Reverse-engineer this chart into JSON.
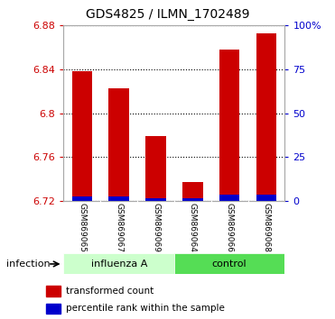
{
  "title": "GDS4825 / ILMN_1702489",
  "samples": [
    "GSM869065",
    "GSM869067",
    "GSM869069",
    "GSM869064",
    "GSM869066",
    "GSM869068"
  ],
  "red_values": [
    6.838,
    6.823,
    6.779,
    6.737,
    6.858,
    6.873
  ],
  "blue_values": [
    6.7245,
    6.7245,
    6.7225,
    6.7225,
    6.7255,
    6.7255
  ],
  "base": 6.72,
  "ylim_min": 6.72,
  "ylim_max": 6.88,
  "yticks_left": [
    6.72,
    6.76,
    6.8,
    6.84,
    6.88
  ],
  "yticks_right_labels": [
    "0",
    "25",
    "50",
    "75",
    "100%"
  ],
  "left_color": "#cc0000",
  "right_color": "#0000cc",
  "bar_red": "#cc0000",
  "bar_blue": "#0000cc",
  "bg_color": "#ffffff",
  "grid_color": "#000000",
  "label_infection": "infection",
  "legend_red": "transformed count",
  "legend_blue": "percentile rank within the sample",
  "bar_width": 0.55,
  "tick_area_bg": "#d3d3d3",
  "influenza_bg": "#ccffcc",
  "control_bg": "#55dd55"
}
